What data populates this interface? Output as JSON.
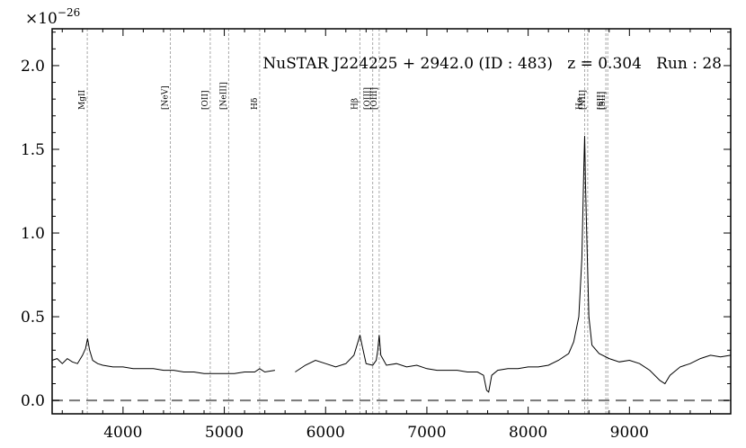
{
  "chart_data": {
    "type": "line",
    "title": "NuSTAR J224225 + 2942.0 (ID : 483)   z = 0.304   Run : 28",
    "y_multiplier": "×10",
    "y_multiplier_exp": "−26",
    "xlim": [
      3300,
      10000
    ],
    "ylim": [
      -0.08,
      2.22
    ],
    "x_ticks": [
      4000,
      5000,
      6000,
      7000,
      8000,
      9000
    ],
    "y_ticks": [
      0.0,
      0.5,
      1.0,
      1.5,
      2.0
    ],
    "y_tick_labels": [
      "0.0",
      "0.5",
      "1.0",
      "1.5",
      "2.0"
    ],
    "zero_line": 0.0,
    "grid": false,
    "emission_lines": [
      {
        "label": "MgII",
        "x": 3647
      },
      {
        "label": "[NeV]",
        "x": 4467
      },
      {
        "label": "[OII]",
        "x": 4861
      },
      {
        "label": "[NeIII]",
        "x": 5043
      },
      {
        "label": "Hδ",
        "x": 5349
      },
      {
        "label": "Hβ",
        "x": 6339
      },
      {
        "label": "[OIII]",
        "x": 6465
      },
      {
        "label": "[OIII]",
        "x": 6529
      },
      {
        "label": "Hα",
        "x": 8558
      },
      {
        "label": "[NII]",
        "x": 8588
      },
      {
        "label": "[SII]",
        "x": 8767
      },
      {
        "label": "[SII]",
        "x": 8786
      }
    ],
    "series": [
      {
        "segments": [
          [
            [
              3300,
              0.24
            ],
            [
              3350,
              0.25
            ],
            [
              3400,
              0.22
            ],
            [
              3450,
              0.25
            ],
            [
              3500,
              0.23
            ],
            [
              3550,
              0.22
            ],
            [
              3600,
              0.27
            ],
            [
              3630,
              0.31
            ],
            [
              3650,
              0.37
            ],
            [
              3670,
              0.3
            ],
            [
              3700,
              0.24
            ],
            [
              3750,
              0.22
            ],
            [
              3800,
              0.21
            ],
            [
              3900,
              0.2
            ],
            [
              4000,
              0.2
            ],
            [
              4100,
              0.19
            ],
            [
              4200,
              0.19
            ],
            [
              4300,
              0.19
            ],
            [
              4400,
              0.18
            ],
            [
              4467,
              0.18
            ],
            [
              4500,
              0.18
            ],
            [
              4600,
              0.17
            ],
            [
              4700,
              0.17
            ],
            [
              4800,
              0.16
            ],
            [
              4900,
              0.16
            ],
            [
              5000,
              0.16
            ],
            [
              5100,
              0.16
            ],
            [
              5200,
              0.17
            ],
            [
              5300,
              0.17
            ],
            [
              5349,
              0.19
            ],
            [
              5400,
              0.17
            ],
            [
              5500,
              0.18
            ]
          ],
          [
            [
              5700,
              0.17
            ],
            [
              5800,
              0.21
            ],
            [
              5900,
              0.24
            ],
            [
              6000,
              0.22
            ],
            [
              6100,
              0.2
            ],
            [
              6200,
              0.22
            ],
            [
              6280,
              0.27
            ],
            [
              6320,
              0.35
            ],
            [
              6339,
              0.39
            ],
            [
              6360,
              0.33
            ],
            [
              6400,
              0.22
            ],
            [
              6465,
              0.21
            ],
            [
              6500,
              0.24
            ],
            [
              6515,
              0.3
            ],
            [
              6529,
              0.39
            ],
            [
              6545,
              0.27
            ],
            [
              6600,
              0.21
            ],
            [
              6700,
              0.22
            ],
            [
              6800,
              0.2
            ],
            [
              6900,
              0.21
            ],
            [
              7000,
              0.19
            ],
            [
              7100,
              0.18
            ],
            [
              7200,
              0.18
            ],
            [
              7300,
              0.18
            ],
            [
              7400,
              0.17
            ],
            [
              7500,
              0.17
            ],
            [
              7560,
              0.15
            ],
            [
              7590,
              0.06
            ],
            [
              7610,
              0.05
            ],
            [
              7640,
              0.15
            ],
            [
              7700,
              0.18
            ],
            [
              7800,
              0.19
            ],
            [
              7900,
              0.19
            ],
            [
              8000,
              0.2
            ],
            [
              8100,
              0.2
            ],
            [
              8200,
              0.21
            ],
            [
              8300,
              0.24
            ],
            [
              8400,
              0.28
            ],
            [
              8450,
              0.35
            ],
            [
              8500,
              0.5
            ],
            [
              8530,
              0.85
            ],
            [
              8550,
              1.4
            ],
            [
              8558,
              1.58
            ],
            [
              8566,
              1.3
            ],
            [
              8580,
              0.95
            ],
            [
              8600,
              0.5
            ],
            [
              8630,
              0.33
            ],
            [
              8700,
              0.28
            ],
            [
              8800,
              0.25
            ],
            [
              8900,
              0.23
            ],
            [
              9000,
              0.24
            ],
            [
              9100,
              0.22
            ],
            [
              9200,
              0.18
            ],
            [
              9300,
              0.12
            ],
            [
              9350,
              0.1
            ],
            [
              9400,
              0.15
            ],
            [
              9500,
              0.2
            ],
            [
              9600,
              0.22
            ],
            [
              9700,
              0.25
            ],
            [
              9800,
              0.27
            ],
            [
              9900,
              0.26
            ],
            [
              10000,
              0.27
            ]
          ]
        ]
      }
    ]
  }
}
